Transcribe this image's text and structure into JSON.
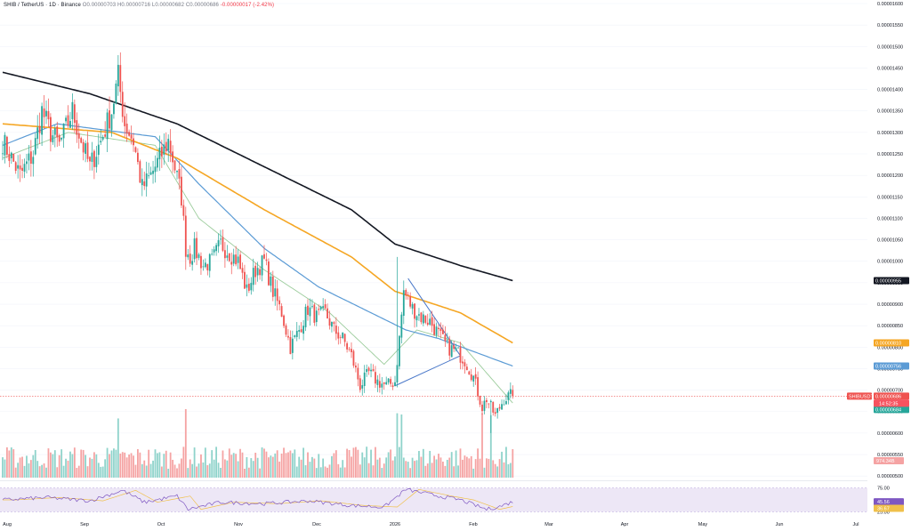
{
  "header": {
    "symbol": "SHIB / TetherUS · 1D · Binance",
    "o": "O0.00000703",
    "h": "H0.00000716",
    "l": "L0.00000682",
    "c": "C0.00000686",
    "chg": "-0.00000017 (-2.42%)"
  },
  "colors": {
    "up": "#26a69a",
    "down": "#ef5350",
    "vol_up": "#8fd3cb",
    "vol_down": "#f5a3a3",
    "ma200": "#131722",
    "ma100": "#f5a623",
    "ma50": "#5b9bd5",
    "ma20": "#9ccc9c",
    "triangle": "#4a78c9",
    "rsi_line": "#7e57c2",
    "rsi_ma": "#f0c04b",
    "rsi_band": "#ede7f6",
    "current_price": "#ef5350"
  },
  "chart_data": {
    "type": "candlestick",
    "x_ticks": [
      "Aug",
      "Sep",
      "Oct",
      "Nov",
      "Dec",
      "2026",
      "Feb",
      "Mar",
      "Apr",
      "May",
      "Jun",
      "Jul"
    ],
    "y_ticks": [
      "0.00001600",
      "0.00001550",
      "0.00001500",
      "0.00001450",
      "0.00001400",
      "0.00001350",
      "0.00001300",
      "0.00001250",
      "0.00001200",
      "0.00001150",
      "0.00001100",
      "0.00001050",
      "0.00001000",
      "0.00000950",
      "0.00000900",
      "0.00000850",
      "0.00000800",
      "0.00000750",
      "0.00000700",
      "0.00000650",
      "0.00000600",
      "0.00000550",
      "0.00000500"
    ],
    "ylim": [
      4.9e-06,
      1.6e-05
    ],
    "price_tags": [
      {
        "label": "0.00000955",
        "value": 9.55e-06,
        "color": "#131722"
      },
      {
        "label": "0.00000810",
        "value": 8.1e-06,
        "color": "#f5a623"
      },
      {
        "label": "0.00000756",
        "value": 7.56e-06,
        "color": "#5b9bd5"
      },
      {
        "label": "0.00000686",
        "value": 6.86e-06,
        "color": "#ef5350"
      },
      {
        "label": "0.00000684",
        "value": 6.84e-06,
        "color": "#26a69a"
      }
    ],
    "symbol_tag": "SHIBUSDT",
    "countdown": "14:52:35",
    "volume_label": "974.34B",
    "rsi_ticks": [
      "75.00",
      "25.00"
    ],
    "rsi_values": [
      "45.56",
      "36.67"
    ],
    "series": [
      {
        "name": "SHIB/USDT",
        "kind": "ohlc"
      },
      {
        "name": "MA200",
        "kind": "line"
      },
      {
        "name": "MA100",
        "kind": "line"
      },
      {
        "name": "MA50",
        "kind": "line"
      },
      {
        "name": "MA20",
        "kind": "line"
      }
    ],
    "anchors_close": [
      [
        0,
        1.28e-05
      ],
      [
        8,
        1.2e-05
      ],
      [
        14,
        1.25e-05
      ],
      [
        18,
        1.35e-05
      ],
      [
        22,
        1.3e-05
      ],
      [
        26,
        1.27e-05
      ],
      [
        32,
        1.35e-05
      ],
      [
        36,
        1.28e-05
      ],
      [
        40,
        1.22e-05
      ],
      [
        45,
        1.28e-05
      ],
      [
        50,
        1.35e-05
      ],
      [
        53,
        1.43e-05
      ],
      [
        56,
        1.32e-05
      ],
      [
        60,
        1.28e-05
      ],
      [
        64,
        1.17e-05
      ],
      [
        68,
        1.2e-05
      ],
      [
        72,
        1.24e-05
      ],
      [
        76,
        1.28e-05
      ],
      [
        78,
        1.24e-05
      ],
      [
        82,
        1.15e-05
      ],
      [
        84,
        1.03e-05
      ],
      [
        86,
        1.01e-05
      ],
      [
        88,
        1.03e-05
      ],
      [
        92,
        9.9e-06
      ],
      [
        96,
        1e-05
      ],
      [
        100,
        1.04e-05
      ],
      [
        104,
        1.02e-05
      ],
      [
        108,
        1e-05
      ],
      [
        112,
        9.3e-06
      ],
      [
        116,
        9.8e-06
      ],
      [
        120,
        1e-05
      ],
      [
        124,
        9.3e-06
      ],
      [
        128,
        8.8e-06
      ],
      [
        132,
        8e-06
      ],
      [
        136,
        8.4e-06
      ],
      [
        140,
        8.9e-06
      ],
      [
        144,
        8.7e-06
      ],
      [
        148,
        8.8e-06
      ],
      [
        152,
        8.4e-06
      ],
      [
        156,
        8.2e-06
      ],
      [
        160,
        7.8e-06
      ],
      [
        164,
        7.1e-06
      ],
      [
        168,
        7.4e-06
      ],
      [
        172,
        7.2e-06
      ],
      [
        176,
        7.1e-06
      ],
      [
        180,
        7.2e-06
      ],
      [
        182,
        8.2e-06
      ],
      [
        184,
        9.3e-06
      ],
      [
        188,
        8.9e-06
      ],
      [
        192,
        8.7e-06
      ],
      [
        196,
        8.6e-06
      ],
      [
        200,
        8.3e-06
      ],
      [
        204,
        8e-06
      ],
      [
        208,
        7.9e-06
      ],
      [
        212,
        7.7e-06
      ],
      [
        216,
        7.3e-06
      ],
      [
        220,
        6.6e-06
      ],
      [
        222,
        6.8e-06
      ],
      [
        226,
        6.4e-06
      ],
      [
        230,
        6.8e-06
      ],
      [
        234,
        6.9e-06
      ]
    ],
    "ma200_anchors": [
      [
        0,
        1.44e-05
      ],
      [
        40,
        1.39e-05
      ],
      [
        80,
        1.32e-05
      ],
      [
        120,
        1.22e-05
      ],
      [
        160,
        1.12e-05
      ],
      [
        180,
        1.04e-05
      ],
      [
        210,
        9.9e-06
      ],
      [
        234,
        9.55e-06
      ]
    ],
    "ma100_anchors": [
      [
        0,
        1.32e-05
      ],
      [
        50,
        1.3e-05
      ],
      [
        80,
        1.24e-05
      ],
      [
        120,
        1.12e-05
      ],
      [
        160,
        1.01e-05
      ],
      [
        180,
        9.3e-06
      ],
      [
        210,
        8.8e-06
      ],
      [
        234,
        8.1e-06
      ]
    ],
    "ma50_anchors": [
      [
        0,
        1.27e-05
      ],
      [
        25,
        1.32e-05
      ],
      [
        70,
        1.29e-05
      ],
      [
        90,
        1.18e-05
      ],
      [
        120,
        1.03e-05
      ],
      [
        145,
        9.4e-06
      ],
      [
        165,
        8.9e-06
      ],
      [
        185,
        8.4e-06
      ],
      [
        200,
        8.2e-06
      ],
      [
        234,
        7.56e-06
      ]
    ],
    "ma20_anchors": [
      [
        0,
        1.24e-05
      ],
      [
        30,
        1.3e-05
      ],
      [
        70,
        1.27e-05
      ],
      [
        90,
        1.1e-05
      ],
      [
        120,
        9.8e-06
      ],
      [
        150,
        8.8e-06
      ],
      [
        175,
        7.6e-06
      ],
      [
        190,
        8.4e-06
      ],
      [
        210,
        8.1e-06
      ],
      [
        234,
        6.7e-06
      ]
    ],
    "triangle": [
      [
        180,
        7.1e-06
      ],
      [
        186,
        9.6e-06
      ],
      [
        210,
        7.8e-06
      ],
      [
        182,
        8.4e-06
      ]
    ],
    "rsi_anchors": [
      [
        0,
        50
      ],
      [
        20,
        55
      ],
      [
        40,
        48
      ],
      [
        55,
        70
      ],
      [
        65,
        45
      ],
      [
        80,
        58
      ],
      [
        85,
        30
      ],
      [
        100,
        45
      ],
      [
        120,
        42
      ],
      [
        140,
        48
      ],
      [
        160,
        38
      ],
      [
        175,
        35
      ],
      [
        185,
        72
      ],
      [
        200,
        58
      ],
      [
        210,
        50
      ],
      [
        222,
        30
      ],
      [
        228,
        36
      ],
      [
        234,
        46
      ]
    ]
  }
}
